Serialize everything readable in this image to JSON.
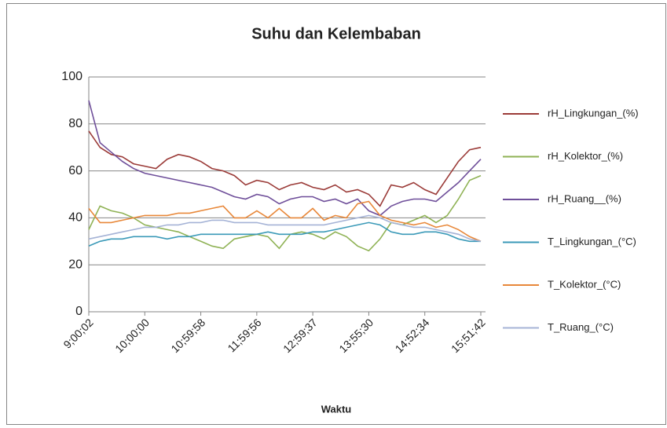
{
  "chart_data": {
    "type": "line",
    "title": "Suhu dan Kelembaban",
    "x_label": "Waktu",
    "categories": [
      "9;00;02",
      null,
      null,
      null,
      null,
      "10;00;00",
      null,
      null,
      null,
      null,
      "10;59;58",
      null,
      null,
      null,
      null,
      "11;59;56",
      null,
      null,
      null,
      null,
      "12;59;37",
      null,
      null,
      null,
      null,
      "13;55;30",
      null,
      null,
      null,
      null,
      "14;52;34",
      null,
      null,
      null,
      null,
      "15;51;42"
    ],
    "ylim": [
      0,
      100
    ],
    "yticks": [
      0,
      20,
      40,
      60,
      80,
      100
    ],
    "grid": true,
    "legend": "right",
    "series": [
      {
        "name": "rH_Lingkungan_(%)",
        "color": "#9b3b38",
        "values": [
          77,
          70,
          67,
          66,
          63,
          62,
          61,
          65,
          67,
          66,
          64,
          61,
          60,
          58,
          54,
          56,
          55,
          52,
          54,
          55,
          53,
          52,
          54,
          51,
          52,
          50,
          45,
          54,
          53,
          55,
          52,
          50,
          57,
          64,
          69,
          70
        ]
      },
      {
        "name": "rH_Kolektor_(%)",
        "color": "#8fb255",
        "values": [
          35,
          45,
          43,
          42,
          40,
          37,
          36,
          35,
          34,
          32,
          30,
          28,
          27,
          31,
          32,
          33,
          32,
          27,
          33,
          34,
          33,
          31,
          34,
          32,
          28,
          26,
          31,
          38,
          37,
          39,
          41,
          38,
          41,
          48,
          56,
          58
        ]
      },
      {
        "name": "rH_Ruang__(%)",
        "color": "#6f4f9a",
        "values": [
          90,
          72,
          68,
          64,
          61,
          59,
          58,
          57,
          56,
          55,
          54,
          53,
          51,
          49,
          48,
          50,
          49,
          46,
          48,
          49,
          49,
          47,
          48,
          46,
          48,
          43,
          41,
          45,
          47,
          48,
          48,
          47,
          51,
          55,
          60,
          65
        ]
      },
      {
        "name": "T_Lingkungan_(°C)",
        "color": "#3b9ab8",
        "values": [
          28,
          30,
          31,
          31,
          32,
          32,
          32,
          31,
          32,
          32,
          33,
          33,
          33,
          33,
          33,
          33,
          34,
          33,
          33,
          33,
          34,
          34,
          35,
          36,
          37,
          38,
          37,
          34,
          33,
          33,
          34,
          34,
          33,
          31,
          30,
          30
        ]
      },
      {
        "name": "T_Kolektor_(°C)",
        "color": "#e8883a",
        "values": [
          44,
          38,
          38,
          39,
          40,
          41,
          41,
          41,
          42,
          42,
          43,
          44,
          45,
          40,
          40,
          43,
          40,
          44,
          40,
          40,
          44,
          39,
          41,
          40,
          46,
          47,
          41,
          39,
          38,
          37,
          38,
          36,
          37,
          35,
          32,
          30
        ]
      },
      {
        "name": "T_Ruang_(°C)",
        "color": "#a5b3d6",
        "values": [
          31,
          32,
          33,
          34,
          35,
          36,
          36,
          37,
          37,
          38,
          38,
          39,
          39,
          38,
          38,
          38,
          37,
          37,
          37,
          37,
          37,
          37,
          38,
          39,
          40,
          41,
          40,
          38,
          37,
          36,
          36,
          35,
          34,
          33,
          31,
          30
        ]
      }
    ]
  }
}
